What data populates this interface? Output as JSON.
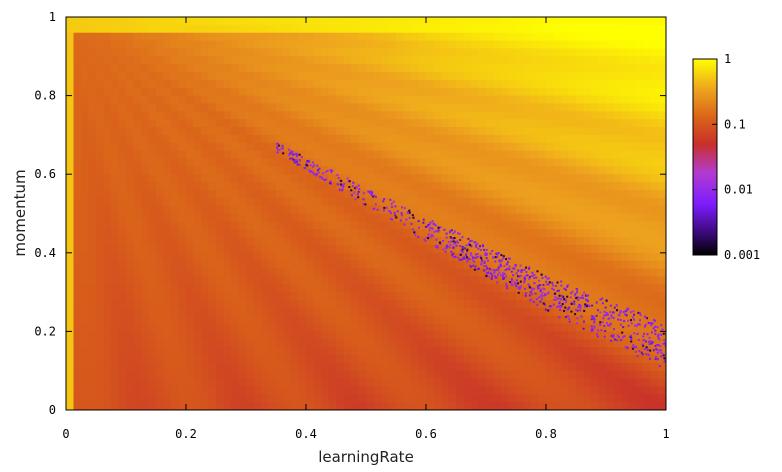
{
  "chart_data": {
    "type": "heatmap",
    "title": "",
    "xlabel": "learningRate",
    "ylabel": "momentum",
    "xlim": [
      0,
      1
    ],
    "ylim": [
      0,
      1
    ],
    "xticks": [
      {
        "value": 0,
        "label": "0"
      },
      {
        "value": 0.2,
        "label": "0.2"
      },
      {
        "value": 0.4,
        "label": "0.4"
      },
      {
        "value": 0.6,
        "label": "0.6"
      },
      {
        "value": 0.8,
        "label": "0.8"
      },
      {
        "value": 1,
        "label": "1"
      }
    ],
    "yticks": [
      {
        "value": 0,
        "label": "0"
      },
      {
        "value": 0.2,
        "label": "0.2"
      },
      {
        "value": 0.4,
        "label": "0.4"
      },
      {
        "value": 0.6,
        "label": "0.6"
      },
      {
        "value": 0.8,
        "label": "0.8"
      },
      {
        "value": 1,
        "label": "1"
      }
    ],
    "grid": false,
    "colorbar": {
      "scale": "log",
      "range": [
        0.001,
        1
      ],
      "ticks": [
        {
          "value": 1,
          "label": "1"
        },
        {
          "value": 0.1,
          "label": "0.1"
        },
        {
          "value": 0.01,
          "label": "0.01"
        },
        {
          "value": 0.001,
          "label": "0.001"
        }
      ],
      "colormap": [
        {
          "value": 0.001,
          "color": "#000000"
        },
        {
          "value": 0.0022,
          "color": "#3a0a7a"
        },
        {
          "value": 0.006,
          "color": "#7d1cff"
        },
        {
          "value": 0.018,
          "color": "#b23bd0"
        },
        {
          "value": 0.05,
          "color": "#c8302a"
        },
        {
          "value": 0.12,
          "color": "#d9601a"
        },
        {
          "value": 0.35,
          "color": "#eea51e"
        },
        {
          "value": 1,
          "color": "#ffff00"
        }
      ]
    },
    "regions": {
      "upper_right": 0.35,
      "upper_left": 0.14,
      "lower_left": 0.09,
      "lower_right": 0.07,
      "top_band": 0.9,
      "y_axis_strip": 0.5
    },
    "low_error_band": {
      "points": [
        [
          0.35,
          0.67
        ],
        [
          0.6,
          0.46
        ],
        [
          0.8,
          0.3
        ],
        [
          1.0,
          0.16
        ]
      ],
      "min_value": 0.001,
      "typical_value": 0.006
    }
  }
}
